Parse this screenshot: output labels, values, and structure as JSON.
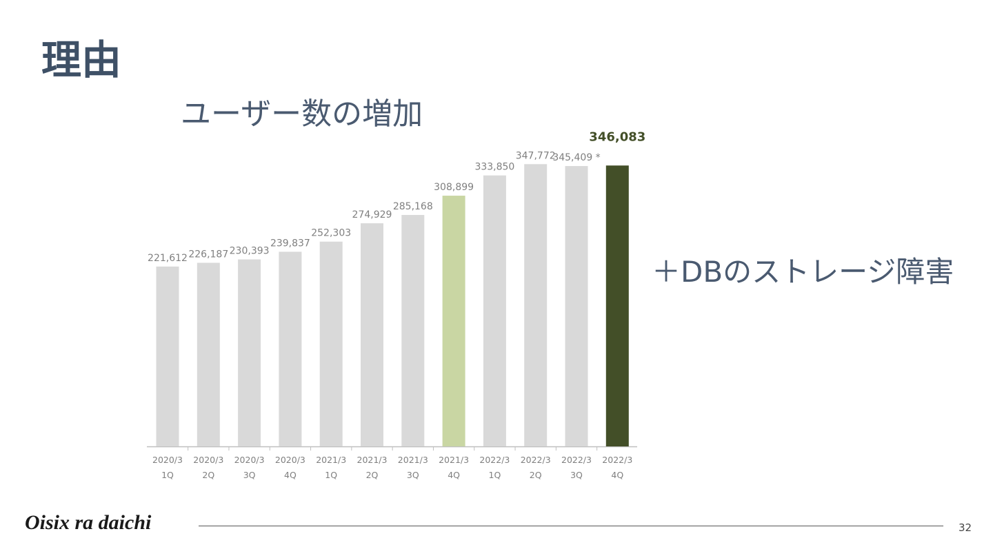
{
  "slide": {
    "title": "理由",
    "subtitle": "ユーザー数の増加",
    "side_note": "＋DBのストレージ障害",
    "footer_logo": "Oisix ra daichi",
    "page_number": "32"
  },
  "chart_data": {
    "type": "bar",
    "categories": [
      [
        "2020/3",
        "1Q"
      ],
      [
        "2020/3",
        "2Q"
      ],
      [
        "2020/3",
        "3Q"
      ],
      [
        "2020/3",
        "4Q"
      ],
      [
        "2021/3",
        "1Q"
      ],
      [
        "2021/3",
        "2Q"
      ],
      [
        "2021/3",
        "3Q"
      ],
      [
        "2021/3",
        "4Q"
      ],
      [
        "2022/3",
        "1Q"
      ],
      [
        "2022/3",
        "2Q"
      ],
      [
        "2022/3",
        "3Q"
      ],
      [
        "2022/3",
        "4Q"
      ]
    ],
    "values": [
      221612,
      226187,
      230393,
      239837,
      252303,
      274929,
      285168,
      308899,
      333850,
      347772,
      345409,
      346083
    ],
    "data_labels": [
      "221,612",
      "226,187",
      "230,393",
      "239,837",
      "252,303",
      "274,929",
      "285,168",
      "308,899",
      "333,850",
      "347,772",
      "345,409 *",
      "346,083"
    ],
    "highlight": {
      "default_color": "#d9d9d9",
      "highlight_index": 7,
      "highlight_color": "#c9d6a3",
      "final_index": 11,
      "final_color": "#434f28",
      "label_color": "#7f7f7f",
      "final_label_color": "#434f28"
    },
    "ylim": [
      0,
      348000
    ],
    "grid": false,
    "legend": "none",
    "title": "",
    "xlabel": "",
    "ylabel": ""
  }
}
